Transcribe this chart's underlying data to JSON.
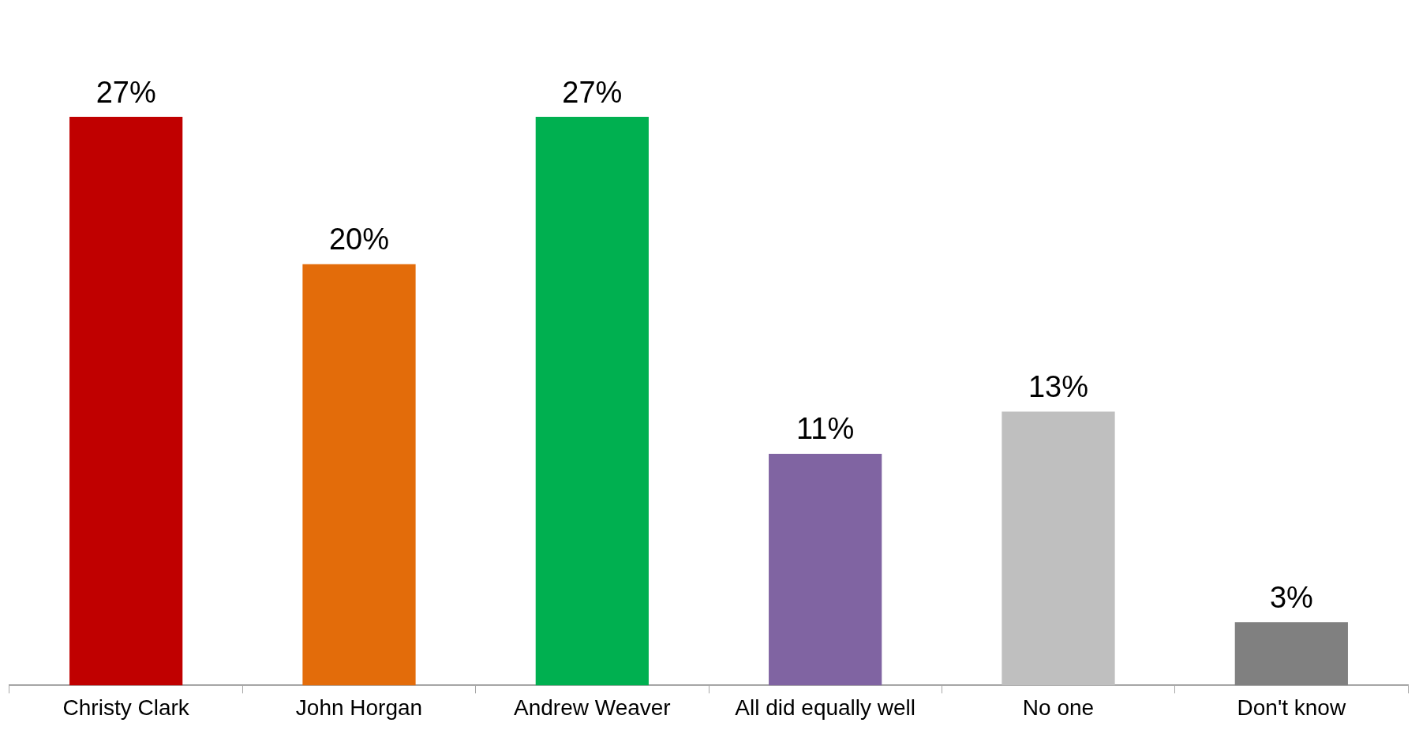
{
  "chart_data": {
    "type": "bar",
    "categories": [
      "Christy Clark",
      "John Horgan",
      "Andrew Weaver",
      "All did equally well",
      "No one",
      "Don't know"
    ],
    "values": [
      27,
      20,
      27,
      11,
      13,
      3
    ],
    "colors": [
      "#c00000",
      "#e36c0a",
      "#00b050",
      "#8064a2",
      "#bfbfbf",
      "#808080"
    ],
    "value_labels": [
      "27%",
      "20%",
      "27%",
      "11%",
      "13%",
      "3%"
    ],
    "grid": false,
    "legend": false
  }
}
